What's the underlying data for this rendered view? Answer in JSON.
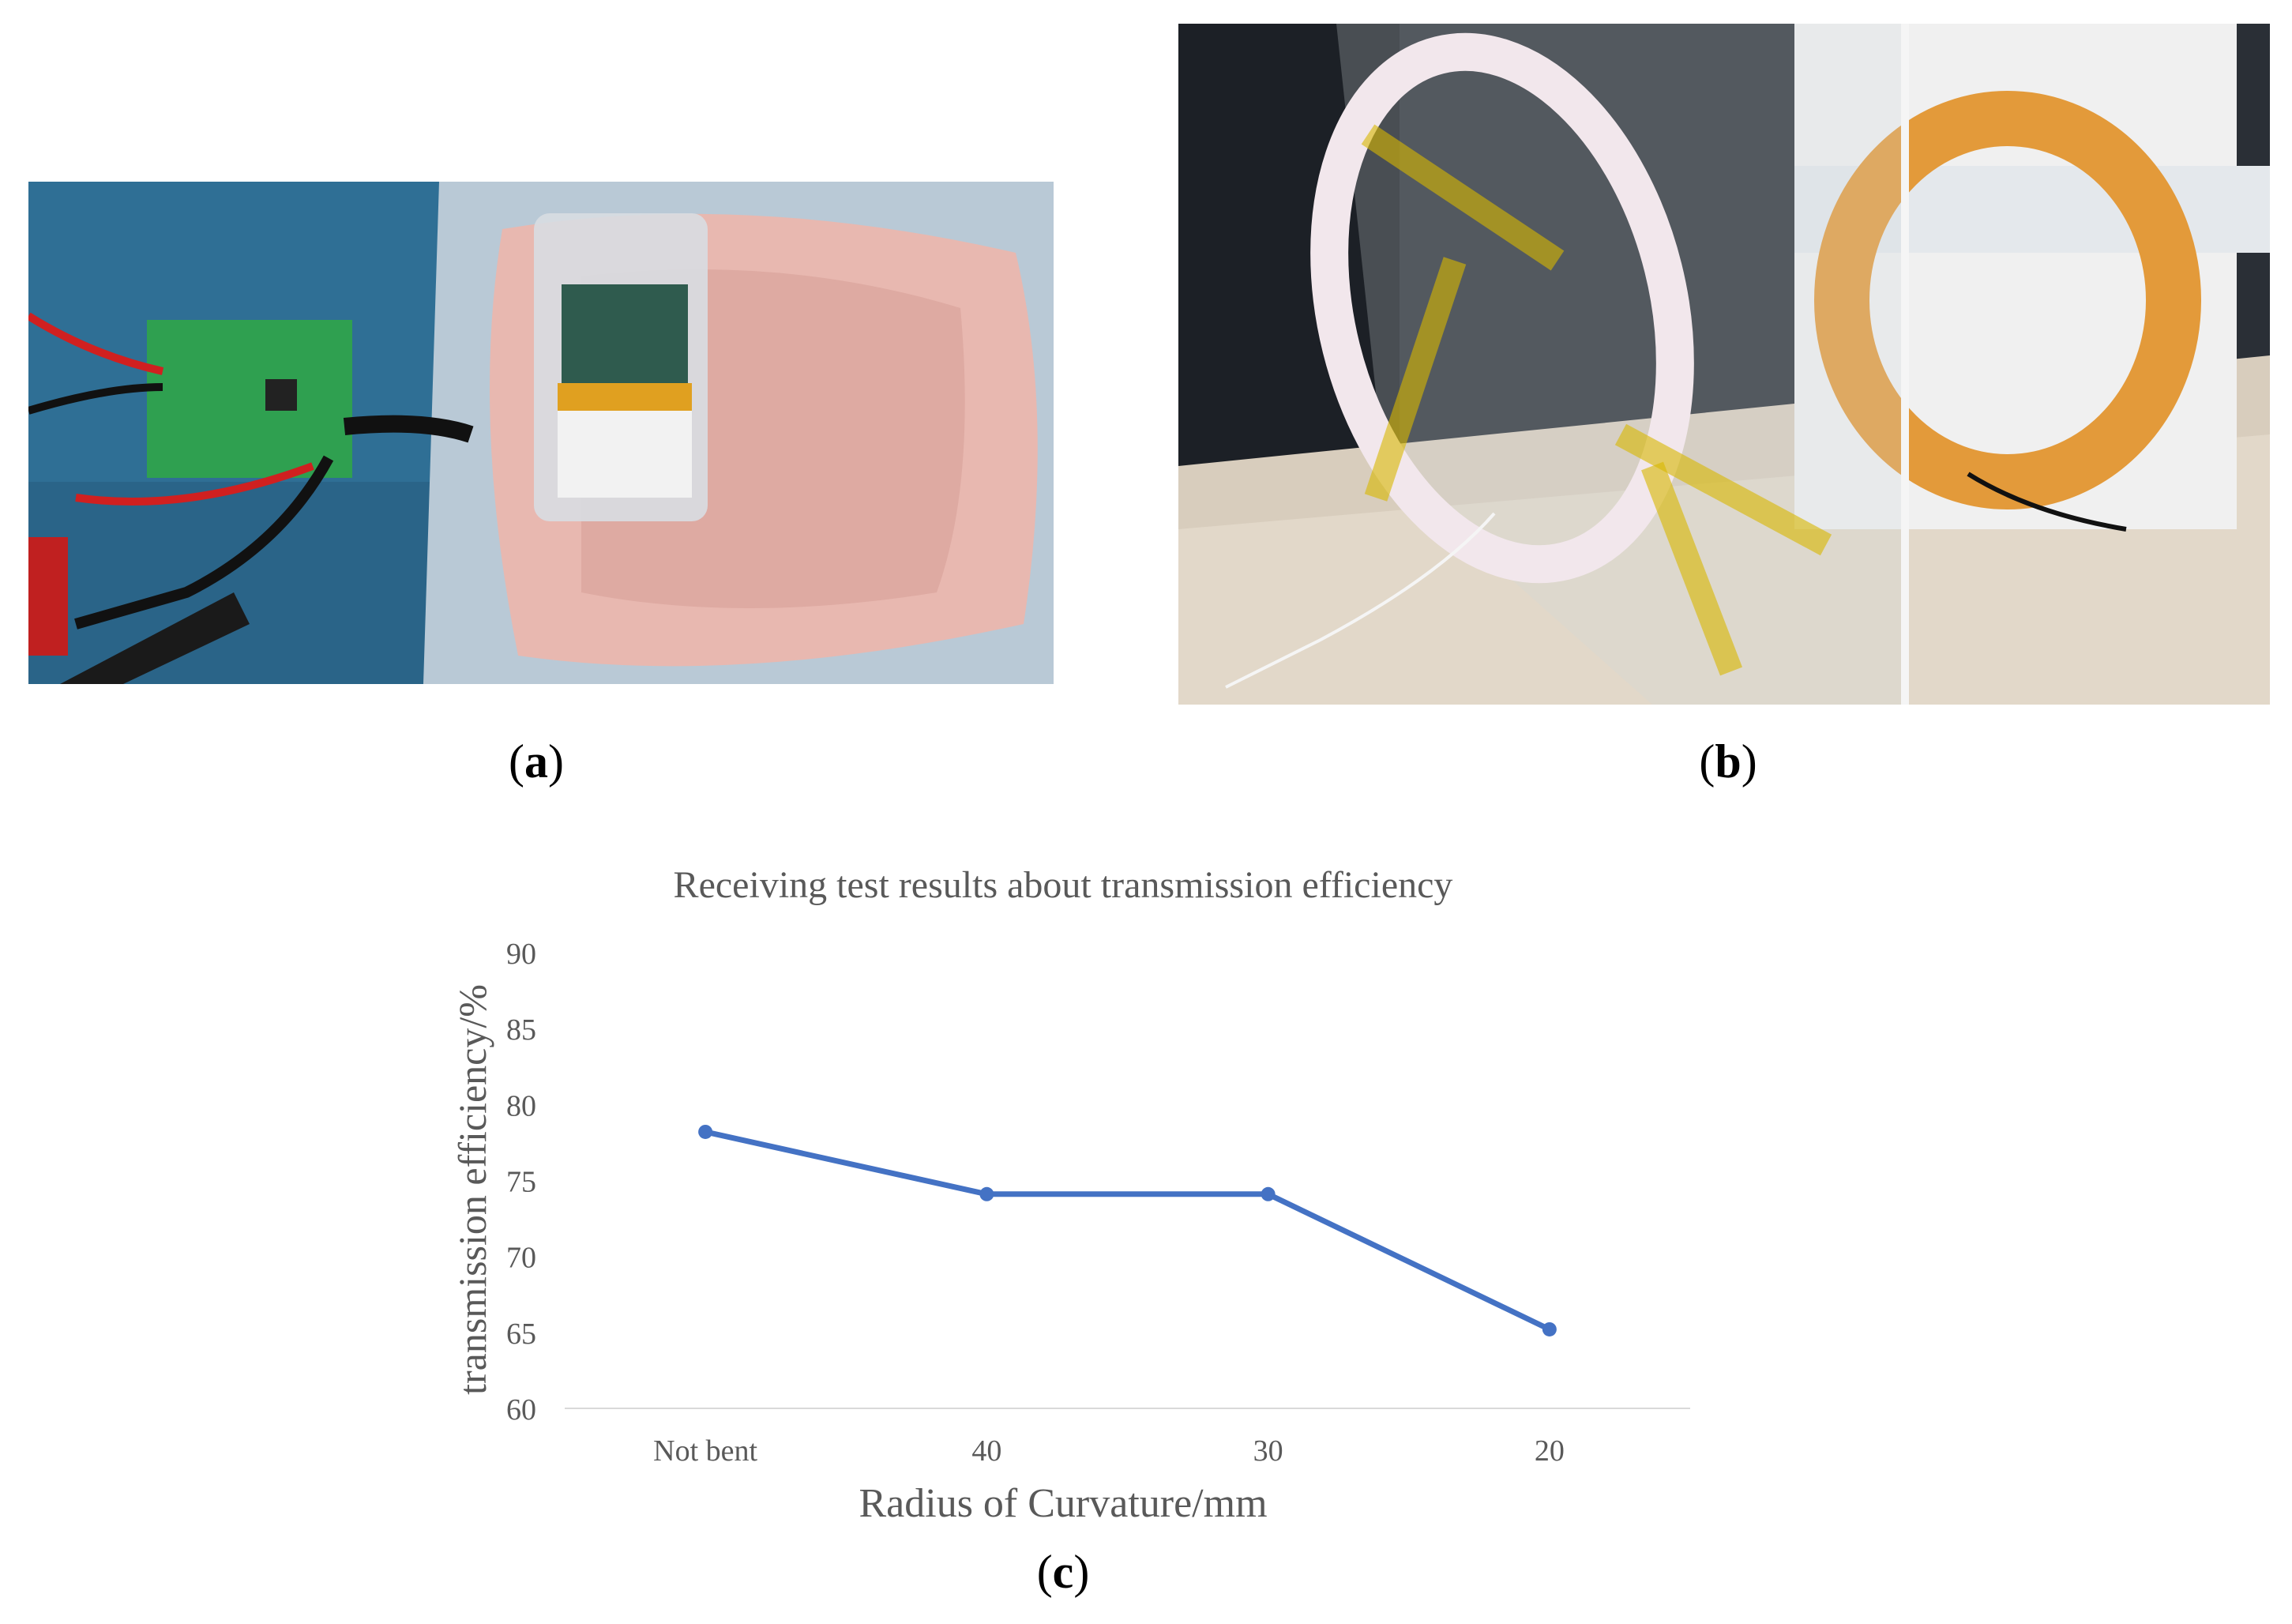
{
  "panels": {
    "a": {
      "open": "(",
      "letter": "a",
      "close": ")"
    },
    "b": {
      "open": "(",
      "letter": "b",
      "close": ")"
    },
    "c": {
      "open": "(",
      "letter": "c",
      "close": ")"
    }
  },
  "chart_data": {
    "type": "line",
    "title": "Receiving test results about transmission efficiency",
    "xlabel": "Radius of Curvature/mm",
    "ylabel": "transmission efficiency/%",
    "categories": [
      "Not bent",
      "40",
      "30",
      "20"
    ],
    "series": [
      {
        "values": [
          78.2,
          74.1,
          74.1,
          65.2
        ],
        "color": "#4472c4"
      }
    ],
    "ylim": [
      60,
      90
    ],
    "yticks": [
      60,
      65,
      70,
      75,
      80,
      85,
      90
    ],
    "grid": false,
    "legend": "none"
  }
}
